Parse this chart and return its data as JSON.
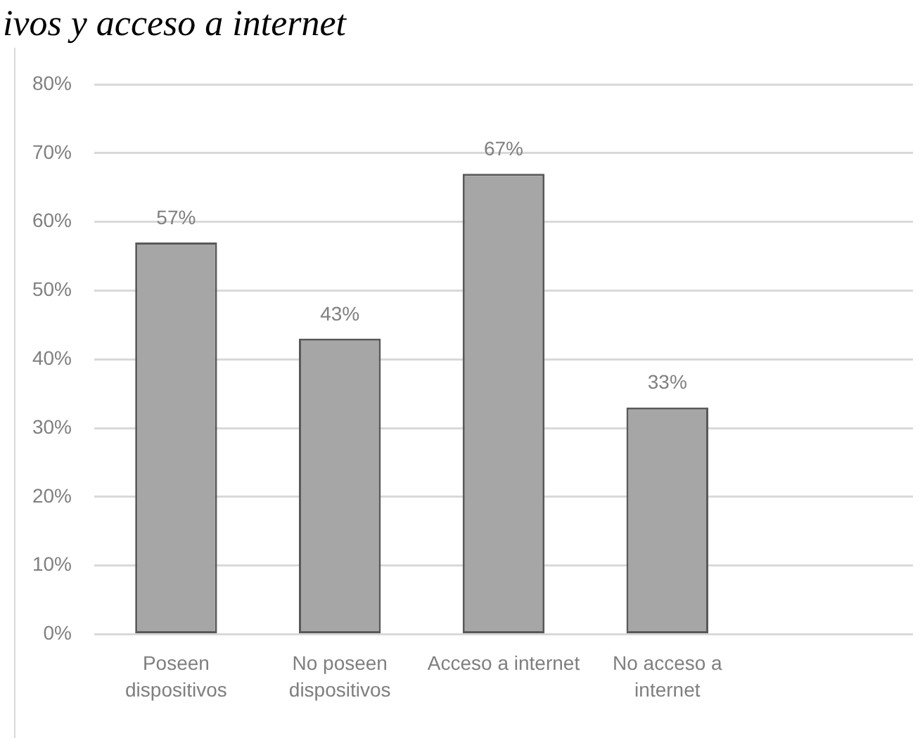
{
  "chart_data": {
    "type": "bar",
    "title": "ivos y acceso a internet",
    "categories": [
      "Poseen dispositivos",
      "No poseen dispositivos",
      "Acceso a internet",
      "No acceso a internet",
      null
    ],
    "values": [
      57,
      43,
      67,
      33,
      null
    ],
    "color": "#a6a6a6",
    "value_labels": [
      "57%",
      "43%",
      "67%",
      "33%",
      null
    ],
    "ylim": [
      0,
      80
    ],
    "yticks": [
      {
        "value": 0,
        "label": "0%"
      },
      {
        "value": 10,
        "label": "10%"
      },
      {
        "value": 20,
        "label": "20%"
      },
      {
        "value": 30,
        "label": "30%"
      },
      {
        "value": 40,
        "label": "40%"
      },
      {
        "value": 50,
        "label": "50%"
      },
      {
        "value": 60,
        "label": "60%"
      },
      {
        "value": 70,
        "label": "70%"
      },
      {
        "value": 80,
        "label": "80%"
      }
    ],
    "grid": "y"
  }
}
